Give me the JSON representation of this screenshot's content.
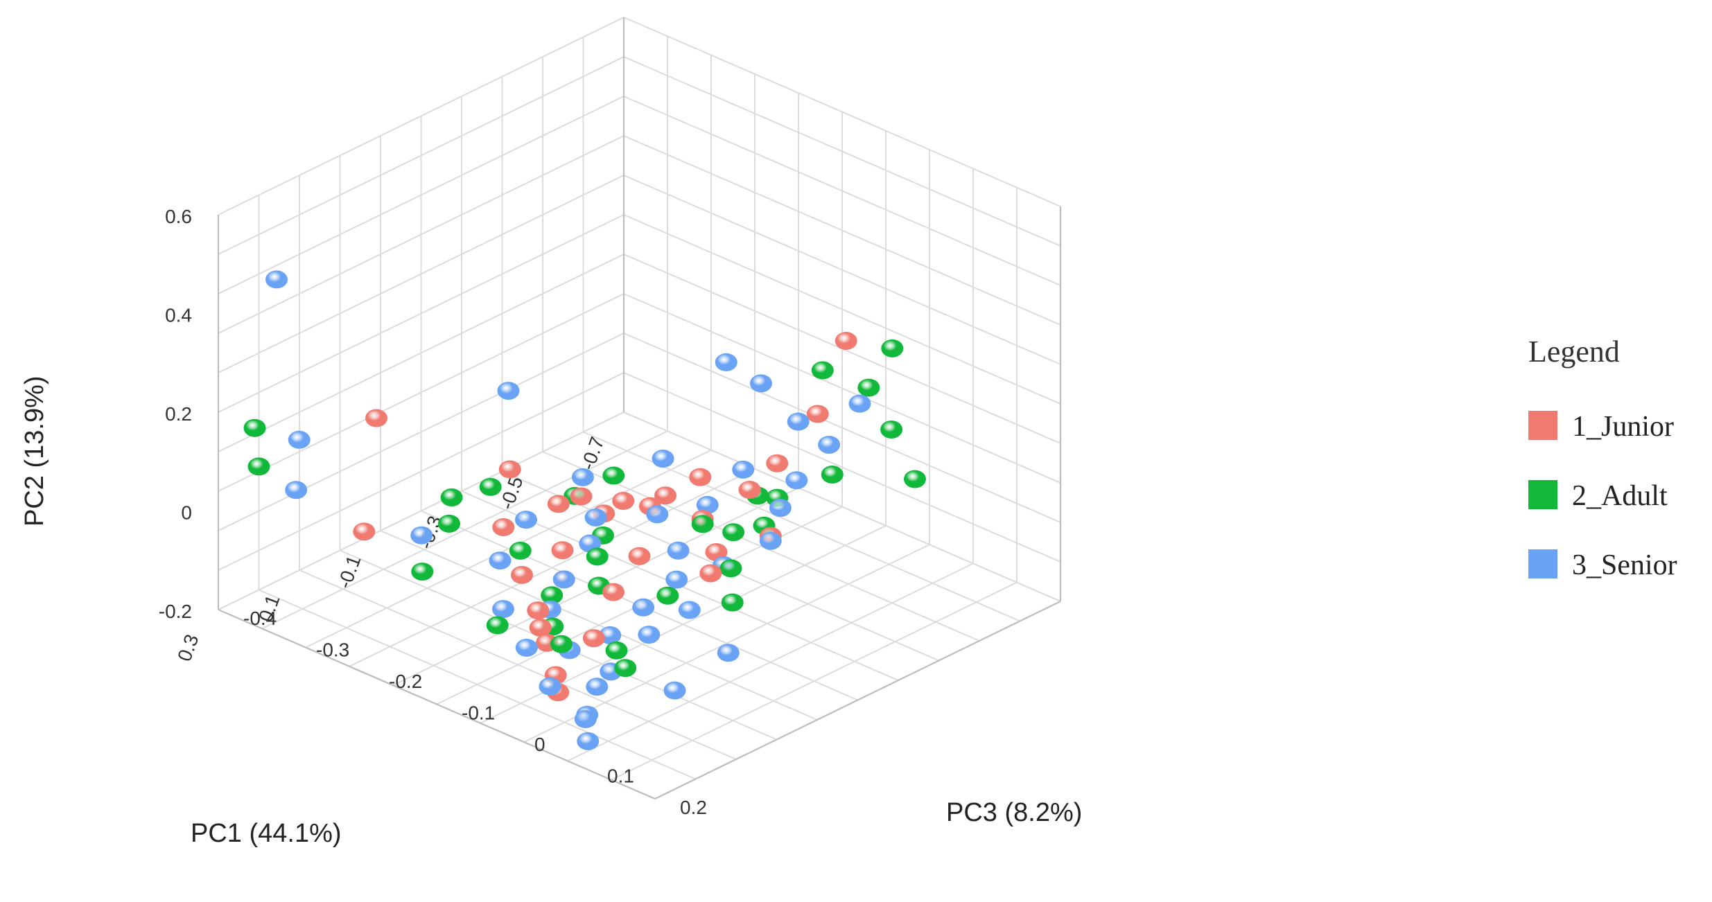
{
  "chart_data": {
    "type": "scatter3d",
    "axes": {
      "x": {
        "label": "PC1 (44.1%)",
        "range": [
          -0.7,
          0.3
        ],
        "ticks": [
          "-0.7",
          "-0.5",
          "-0.3",
          "-0.1",
          "0.1",
          "0.3"
        ]
      },
      "y": {
        "label": "PC2 (13.9%)",
        "range": [
          -0.2,
          0.6
        ],
        "ticks": [
          "-0.2",
          "0",
          "0.2",
          "0.4",
          "0.6"
        ]
      },
      "z": {
        "label": "PC3 (8.2%)",
        "range": [
          -0.4,
          0.2
        ],
        "ticks": [
          "-0.4",
          "-0.3",
          "-0.2",
          "-0.1",
          "0",
          "0.1",
          "0.2"
        ]
      }
    },
    "grid": true,
    "legend": {
      "title": "Legend",
      "placement": "right"
    },
    "series": [
      {
        "name": "1_Junior",
        "color": "#f07a70",
        "points": [
          [
            -0.62,
            0.2,
            -0.05
          ],
          [
            -0.55,
            0.08,
            -0.05
          ],
          [
            -0.45,
            0.02,
            -0.05
          ],
          [
            -0.4,
            -0.02,
            -0.06
          ],
          [
            -0.35,
            0.0,
            -0.1
          ],
          [
            -0.3,
            -0.03,
            -0.12
          ],
          [
            -0.28,
            -0.05,
            -0.13
          ],
          [
            -0.25,
            -0.04,
            -0.15
          ],
          [
            -0.22,
            -0.06,
            -0.16
          ],
          [
            -0.2,
            -0.03,
            -0.18
          ],
          [
            -0.38,
            -0.08,
            -0.02
          ],
          [
            -0.3,
            -0.1,
            -0.05
          ],
          [
            -0.25,
            -0.11,
            -0.03
          ],
          [
            -0.18,
            -0.05,
            -0.2
          ],
          [
            -0.15,
            0.0,
            -0.25
          ],
          [
            -0.1,
            -0.08,
            -0.15
          ],
          [
            -0.05,
            -0.1,
            -0.12
          ],
          [
            0.0,
            -0.09,
            -0.15
          ],
          [
            0.05,
            -0.11,
            -0.1
          ],
          [
            0.08,
            -0.12,
            -0.08
          ],
          [
            0.1,
            -0.13,
            -0.06
          ],
          [
            0.0,
            0.1,
            -0.35
          ],
          [
            0.12,
            -0.05,
            -0.3
          ],
          [
            -0.1,
            -0.12,
            -0.08
          ],
          [
            0.15,
            -0.15,
            -0.02
          ],
          [
            -0.2,
            -0.1,
            -0.1
          ],
          [
            0.02,
            -0.14,
            -0.04
          ],
          [
            -0.08,
            -0.07,
            -0.22
          ],
          [
            0.18,
            -0.16,
            0.0
          ],
          [
            -0.32,
            -0.06,
            -0.08
          ]
        ]
      },
      {
        "name": "2_Adult",
        "color": "#12b83a",
        "points": [
          [
            -0.68,
            0.18,
            -0.02
          ],
          [
            -0.64,
            0.11,
            -0.03
          ],
          [
            -0.66,
            0.03,
            -0.01
          ],
          [
            -0.7,
            -0.08,
            0.0
          ],
          [
            -0.58,
            0.15,
            -0.06
          ],
          [
            -0.55,
            -0.03,
            -0.03
          ],
          [
            -0.45,
            -0.05,
            -0.05
          ],
          [
            -0.42,
            -0.04,
            -0.06
          ],
          [
            -0.4,
            -0.08,
            -0.04
          ],
          [
            -0.36,
            -0.09,
            -0.06
          ],
          [
            -0.32,
            -0.07,
            -0.08
          ],
          [
            -0.3,
            -0.12,
            -0.03
          ],
          [
            -0.28,
            -0.02,
            -0.18
          ],
          [
            -0.22,
            -0.05,
            -0.2
          ],
          [
            -0.2,
            -0.09,
            -0.15
          ],
          [
            -0.15,
            -0.1,
            -0.13
          ],
          [
            -0.1,
            -0.12,
            -0.1
          ],
          [
            -0.05,
            -0.08,
            -0.18
          ],
          [
            0.0,
            -0.05,
            -0.25
          ],
          [
            0.05,
            -0.13,
            -0.08
          ],
          [
            0.1,
            -0.12,
            -0.04
          ],
          [
            0.3,
            0.2,
            -0.35
          ],
          [
            0.2,
            0.05,
            -0.4
          ],
          [
            0.05,
            -0.15,
            0.02
          ],
          [
            -0.25,
            -0.15,
            0.0
          ],
          [
            0.0,
            -0.16,
            -0.02
          ],
          [
            -0.12,
            -0.03,
            -0.26
          ],
          [
            0.12,
            -0.08,
            -0.22
          ],
          [
            -0.02,
            -0.12,
            -0.12
          ],
          [
            -0.18,
            -0.14,
            -0.05
          ],
          [
            0.15,
            -0.1,
            -0.1
          ],
          [
            -0.06,
            -0.04,
            -0.28
          ]
        ]
      },
      {
        "name": "3_Senior",
        "color": "#6aa3f5",
        "points": [
          [
            -0.6,
            0.1,
            -0.02
          ],
          [
            -0.56,
            0.02,
            -0.04
          ],
          [
            -0.52,
            0.07,
            -0.06
          ],
          [
            -0.5,
            0.13,
            -0.1
          ],
          [
            -0.48,
            -0.02,
            -0.04
          ],
          [
            -0.44,
            -0.06,
            -0.04
          ],
          [
            -0.42,
            0.0,
            -0.08
          ],
          [
            -0.38,
            -0.09,
            -0.02
          ],
          [
            -0.35,
            -0.05,
            -0.09
          ],
          [
            -0.33,
            0.02,
            -0.14
          ],
          [
            -0.3,
            -0.12,
            -0.04
          ],
          [
            -0.28,
            -0.06,
            -0.12
          ],
          [
            -0.26,
            -0.1,
            -0.08
          ],
          [
            -0.24,
            -0.02,
            -0.2
          ],
          [
            -0.22,
            -0.13,
            -0.06
          ],
          [
            -0.2,
            -0.06,
            -0.16
          ],
          [
            -0.18,
            -0.15,
            -0.02
          ],
          [
            -0.15,
            -0.08,
            -0.14
          ],
          [
            -0.12,
            -0.14,
            -0.05
          ],
          [
            -0.1,
            -0.05,
            -0.2
          ],
          [
            -0.08,
            -0.16,
            -0.02
          ],
          [
            -0.05,
            -0.1,
            -0.12
          ],
          [
            -0.02,
            -0.15,
            -0.04
          ],
          [
            0.0,
            -0.08,
            -0.18
          ],
          [
            0.02,
            -0.12,
            -0.1
          ],
          [
            0.05,
            -0.17,
            0.0
          ],
          [
            0.08,
            -0.14,
            -0.04
          ],
          [
            0.1,
            -0.1,
            -0.12
          ],
          [
            0.12,
            -0.16,
            0.02
          ],
          [
            0.15,
            -0.12,
            -0.06
          ],
          [
            0.18,
            -0.18,
            0.04
          ],
          [
            0.2,
            -0.14,
            0.0
          ],
          [
            0.22,
            -0.16,
            0.06
          ],
          [
            0.25,
            -0.18,
            0.08
          ],
          [
            0.3,
            0.52,
            -0.32
          ],
          [
            0.28,
            0.2,
            -0.3
          ],
          [
            0.18,
            0.02,
            -0.36
          ],
          [
            -0.45,
            0.18,
            -0.12
          ],
          [
            -0.2,
            0.12,
            -0.28
          ],
          [
            0.05,
            -0.06,
            -0.26
          ],
          [
            -0.15,
            -0.18,
            0.05
          ],
          [
            0.0,
            -0.19,
            0.06
          ]
        ]
      }
    ]
  }
}
